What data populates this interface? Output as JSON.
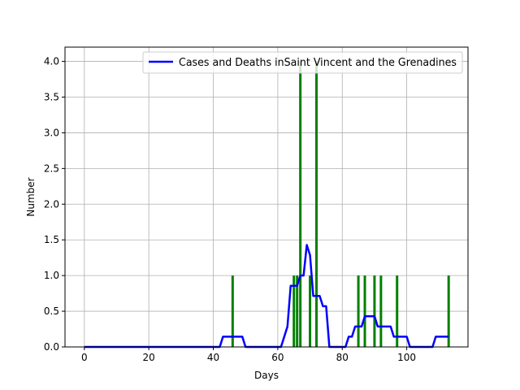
{
  "chart_data": {
    "type": "bar+line",
    "title": "",
    "xlabel": "Days",
    "ylabel": "Number",
    "xlim": [
      -6,
      119
    ],
    "ylim": [
      0,
      4.2
    ],
    "xticks": [
      0,
      20,
      40,
      60,
      80,
      100
    ],
    "yticks": [
      0.0,
      0.5,
      1.0,
      1.5,
      2.0,
      2.5,
      3.0,
      3.5,
      4.0
    ],
    "grid": true,
    "legend_position": "top-right",
    "bar_color": "#008000",
    "line_color": "#0000ff",
    "legend": {
      "label": "Cases and Deaths inSaint Vincent and the Grenadines"
    },
    "bars": {
      "x": [
        46,
        65,
        66,
        67,
        70,
        72,
        85,
        87,
        90,
        92,
        97,
        113
      ],
      "values": [
        1,
        1,
        1,
        4,
        1,
        4,
        1,
        1,
        1,
        1,
        1,
        1
      ]
    },
    "line": {
      "x": [
        0,
        42,
        43,
        44,
        45,
        46,
        47,
        48,
        49,
        50,
        60,
        61,
        62,
        63,
        64,
        65,
        66,
        67,
        68,
        69,
        70,
        71,
        72,
        73,
        74,
        75,
        76,
        80,
        81,
        82,
        83,
        84,
        85,
        86,
        87,
        88,
        89,
        90,
        91,
        92,
        93,
        94,
        95,
        96,
        97,
        98,
        99,
        100,
        101,
        108,
        109,
        110,
        111,
        112,
        113
      ],
      "values": [
        0,
        0,
        0.143,
        0.143,
        0.143,
        0.143,
        0.143,
        0.143,
        0.143,
        0,
        0,
        0,
        0.143,
        0.286,
        0.857,
        0.857,
        0.857,
        1.0,
        1.0,
        1.429,
        1.286,
        0.714,
        0.714,
        0.714,
        0.571,
        0.571,
        0,
        0,
        0,
        0.143,
        0.143,
        0.286,
        0.286,
        0.286,
        0.429,
        0.429,
        0.429,
        0.429,
        0.286,
        0.286,
        0.286,
        0.286,
        0.286,
        0.143,
        0.143,
        0.143,
        0.143,
        0.143,
        0,
        0,
        0.143,
        0.143,
        0.143,
        0.143,
        0.143
      ]
    }
  }
}
